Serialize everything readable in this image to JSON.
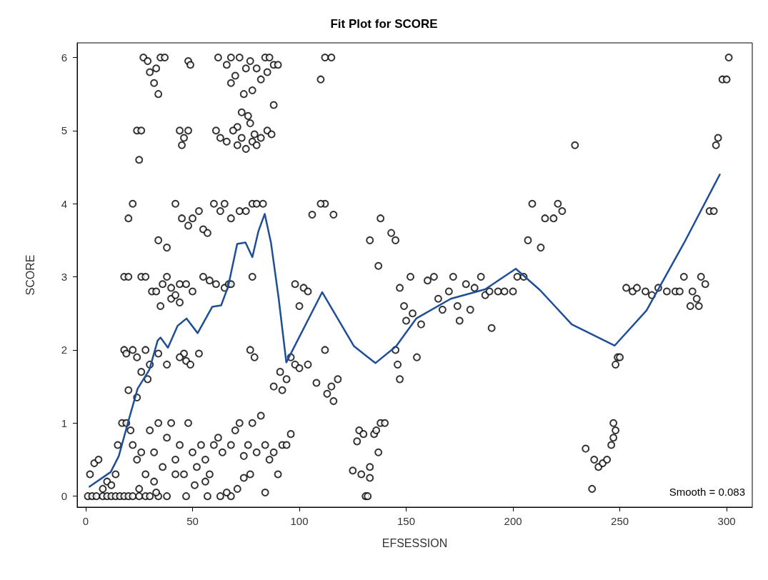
{
  "chart_data": {
    "type": "scatter",
    "title": "Fit Plot for SCORE",
    "xlabel": "EFSESSION",
    "ylabel": "SCORE",
    "xlim": [
      -4,
      312
    ],
    "ylim": [
      -0.15,
      6.2
    ],
    "xticks": [
      0,
      50,
      100,
      150,
      200,
      250,
      300
    ],
    "yticks": [
      0,
      1,
      2,
      3,
      4,
      5,
      6
    ],
    "grid": false,
    "annotations": [
      "Smooth = 0.083"
    ],
    "series": [
      {
        "type": "scatter",
        "color": "#000000",
        "marker": "circle",
        "x": [
          27,
          29,
          33,
          35,
          37,
          30,
          32,
          34,
          48,
          49,
          62,
          66,
          68,
          70,
          72,
          75,
          77,
          80,
          84,
          86,
          88,
          82,
          78,
          74,
          68,
          73,
          76,
          71,
          88,
          85,
          90,
          24,
          26,
          25,
          44,
          46,
          48,
          45,
          61,
          63,
          66,
          69,
          71,
          73,
          75,
          78,
          80,
          82,
          85,
          87,
          77,
          79,
          20,
          22,
          34,
          38,
          42,
          45,
          48,
          50,
          53,
          55,
          57,
          60,
          63,
          65,
          68,
          72,
          75,
          78,
          80,
          83,
          110,
          112,
          115,
          112,
          110,
          106,
          116,
          133,
          138,
          143,
          145,
          137,
          18,
          20,
          26,
          28,
          31,
          33,
          36,
          38,
          40,
          44,
          47,
          50,
          55,
          58,
          61,
          65,
          67,
          40,
          44,
          35,
          42,
          78,
          68,
          18,
          19,
          22,
          24,
          28,
          30,
          34,
          38,
          26,
          24,
          29,
          20,
          46,
          47,
          44,
          53,
          49,
          77,
          79,
          91,
          96,
          98,
          100,
          94,
          104,
          88,
          92,
          100,
          102,
          104,
          98,
          108,
          112,
          113,
          116,
          118,
          115,
          147,
          149,
          145,
          147,
          146,
          150,
          152,
          153,
          155,
          157,
          160,
          163,
          165,
          167,
          170,
          172,
          174,
          175,
          178,
          180,
          182,
          185,
          187,
          189,
          190,
          193,
          196,
          200,
          202,
          205,
          207,
          209,
          213,
          215,
          219,
          221,
          223,
          229,
          249,
          248,
          250,
          253,
          256,
          258,
          262,
          265,
          268,
          272,
          276,
          280,
          278,
          284,
          286,
          283,
          287,
          288,
          290,
          292,
          294,
          295,
          296,
          298,
          300,
          301,
          234,
          237,
          238,
          240,
          242,
          244,
          246,
          247,
          248,
          247,
          125,
          127,
          128,
          129,
          131,
          132,
          133,
          133,
          135,
          137,
          138,
          140,
          136,
          130,
          1,
          3,
          5,
          8,
          10,
          12,
          14,
          16,
          18,
          20,
          22,
          25,
          28,
          30,
          34,
          38,
          47,
          57,
          63,
          68,
          2,
          4,
          6,
          8,
          10,
          12,
          14,
          15,
          17,
          19,
          21,
          22,
          24,
          26,
          28,
          30,
          32,
          34,
          36,
          38,
          40,
          42,
          44,
          46,
          48,
          50,
          52,
          54,
          56,
          58,
          60,
          62,
          64,
          66,
          68,
          70,
          72,
          74,
          76,
          78,
          80,
          82,
          84,
          86,
          88,
          90,
          92,
          94,
          96,
          25,
          32,
          42,
          51,
          56,
          74,
          84,
          71,
          77,
          33
        ],
        "values": [
          6,
          5.95,
          5.85,
          6,
          6,
          5.8,
          5.65,
          5.5,
          5.95,
          5.9,
          6,
          5.9,
          6,
          5.75,
          6,
          5.85,
          5.95,
          5.85,
          6,
          6,
          5.9,
          5.7,
          5.55,
          5.5,
          5.65,
          5.25,
          5.2,
          5.05,
          5.35,
          5.8,
          5.9,
          5,
          5,
          4.6,
          5,
          4.9,
          5,
          4.8,
          5,
          4.9,
          4.85,
          5,
          4.8,
          4.9,
          4.75,
          4.85,
          4.8,
          4.9,
          5,
          4.95,
          5.1,
          4.95,
          3.8,
          4,
          3.5,
          3.4,
          4,
          3.8,
          3.7,
          3.8,
          3.9,
          3.65,
          3.6,
          4,
          3.9,
          4,
          3.8,
          3.9,
          3.9,
          4,
          4,
          4,
          5.7,
          6,
          6,
          4,
          4,
          3.85,
          3.85,
          3.5,
          3.8,
          3.6,
          3.5,
          3.15,
          3,
          3,
          3,
          3,
          2.8,
          2.8,
          2.9,
          3,
          2.85,
          2.9,
          2.9,
          2.8,
          3,
          2.95,
          2.9,
          2.85,
          2.9,
          2.7,
          2.65,
          2.6,
          2.75,
          3,
          2.9,
          2,
          1.95,
          2,
          1.9,
          2,
          1.8,
          1.95,
          1.8,
          1.7,
          1.35,
          1.6,
          1.45,
          1.95,
          1.85,
          1.9,
          1.95,
          1.8,
          2,
          1.9,
          1.7,
          1.9,
          1.8,
          1.75,
          1.6,
          1.8,
          1.5,
          1.45,
          2.6,
          2.85,
          2.8,
          2.9,
          1.55,
          2,
          1.4,
          1.3,
          1.6,
          1.5,
          2.85,
          2.6,
          2,
          1.6,
          1.8,
          2.4,
          3,
          2.5,
          1.9,
          2.35,
          2.95,
          3,
          2.7,
          2.55,
          2.8,
          3,
          2.6,
          2.4,
          2.9,
          2.55,
          2.85,
          3,
          2.75,
          2.8,
          2.3,
          2.8,
          2.8,
          2.8,
          3,
          3,
          3.5,
          4,
          3.4,
          3.8,
          3.8,
          4,
          3.9,
          4.8,
          1.9,
          1.8,
          1.9,
          2.85,
          2.8,
          2.85,
          2.8,
          2.75,
          2.85,
          2.8,
          2.8,
          3,
          2.8,
          2.8,
          2.7,
          2.6,
          2.6,
          3,
          2.9,
          3.9,
          3.9,
          4.8,
          4.9,
          5.7,
          5.7,
          6,
          0.65,
          0.1,
          0.5,
          0.4,
          0.45,
          0.5,
          0.7,
          0.8,
          0.9,
          1,
          0.35,
          0.75,
          0.9,
          0.3,
          0,
          0,
          0.25,
          0.4,
          0.85,
          0.6,
          1,
          1,
          0.9,
          0.85,
          0,
          0,
          0,
          0,
          0,
          0,
          0,
          0,
          0,
          0,
          0,
          0,
          0,
          0,
          0,
          0,
          0,
          0,
          0,
          0,
          0.3,
          0.45,
          0.5,
          0.1,
          0.2,
          0.15,
          0.3,
          0.7,
          1,
          1,
          0.9,
          0.7,
          0.5,
          0.6,
          0.3,
          0.9,
          0.6,
          1,
          0.4,
          0.8,
          1,
          0.5,
          0.7,
          0.3,
          1,
          0.6,
          0.4,
          0.7,
          0.5,
          0.3,
          0.7,
          0.8,
          0.6,
          0.05,
          0.7,
          0.9,
          1,
          0.55,
          0.7,
          1,
          0.6,
          1.1,
          0.7,
          0.5,
          0.6,
          0.3,
          0.7,
          0.7,
          0.85,
          0.1,
          0.2,
          0.3,
          0.15,
          0.2,
          0.25,
          0.05,
          0.1,
          0.3,
          0.05
        ]
      },
      {
        "type": "line",
        "color": "#1f4e96",
        "marker": "none",
        "x": [
          1.8,
          11.7,
          15.5,
          20.4,
          24.3,
          29.8,
          33.7,
          35,
          38.5,
          43,
          47.2,
          52.4,
          59.2,
          63.4,
          66.7,
          70.9,
          74.8,
          78,
          80.9,
          83.8,
          86.7,
          90.3,
          93.9,
          110.7,
          125.6,
          135.6,
          145.3,
          154.7,
          170.9,
          187,
          201.3,
          212.6,
          227.5,
          247.6,
          262.5,
          280,
          296.8
        ],
        "values": [
          0.13,
          0.33,
          0.55,
          1.07,
          1.47,
          1.73,
          2.13,
          2.17,
          2.03,
          2.33,
          2.43,
          2.23,
          2.59,
          2.61,
          2.87,
          3.45,
          3.47,
          3.27,
          3.63,
          3.86,
          3.47,
          2.71,
          1.83,
          2.79,
          2.05,
          1.82,
          2.05,
          2.43,
          2.7,
          2.83,
          3.11,
          2.82,
          2.35,
          2.06,
          2.54,
          3.46,
          4.4
        ]
      }
    ]
  }
}
